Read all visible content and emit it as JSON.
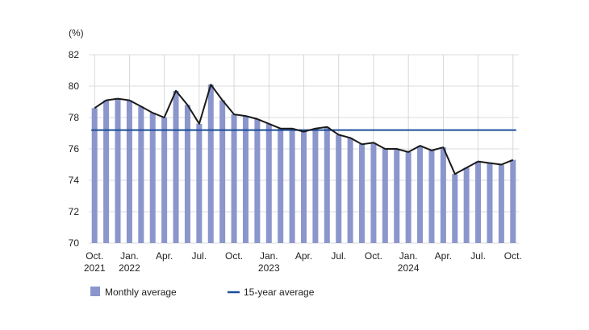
{
  "chart_data": {
    "type": "bar",
    "unit_label": "(%)",
    "ylim": [
      70,
      82
    ],
    "y_ticks": [
      70,
      72,
      74,
      76,
      78,
      80,
      82
    ],
    "grid": true,
    "legend_placement": "bottom-left",
    "x_tick_labels": [
      {
        "index": 0,
        "line1": "Oct.",
        "line2": "2021"
      },
      {
        "index": 3,
        "line1": "Jan.",
        "line2": "2022"
      },
      {
        "index": 6,
        "line1": "Apr.",
        "line2": ""
      },
      {
        "index": 9,
        "line1": "Jul.",
        "line2": ""
      },
      {
        "index": 12,
        "line1": "Oct.",
        "line2": ""
      },
      {
        "index": 15,
        "line1": "Jan.",
        "line2": "2023"
      },
      {
        "index": 18,
        "line1": "Apr.",
        "line2": ""
      },
      {
        "index": 21,
        "line1": "Jul.",
        "line2": ""
      },
      {
        "index": 24,
        "line1": "Oct.",
        "line2": ""
      },
      {
        "index": 27,
        "line1": "Jan.",
        "line2": "2024"
      },
      {
        "index": 30,
        "line1": "Apr.",
        "line2": ""
      },
      {
        "index": 33,
        "line1": "Jul.",
        "line2": ""
      },
      {
        "index": 36,
        "line1": "Oct.",
        "line2": ""
      }
    ],
    "series": [
      {
        "name": "Monthly average",
        "kind": "bar-with-line",
        "bar_color": "#8b96cc",
        "line_color": "#1a1a1a",
        "values": [
          78.6,
          79.1,
          79.2,
          79.1,
          78.7,
          78.3,
          78.0,
          79.7,
          78.8,
          77.6,
          80.1,
          79.1,
          78.2,
          78.1,
          77.9,
          77.6,
          77.3,
          77.3,
          77.1,
          77.3,
          77.4,
          76.9,
          76.7,
          76.3,
          76.4,
          76.0,
          76.0,
          75.8,
          76.2,
          75.9,
          76.1,
          74.4,
          74.8,
          75.2,
          75.1,
          75.0,
          75.3
        ]
      },
      {
        "name": "15-year average",
        "kind": "horizontal-line",
        "line_color": "#1e4d9b",
        "value": 77.2
      }
    ]
  }
}
